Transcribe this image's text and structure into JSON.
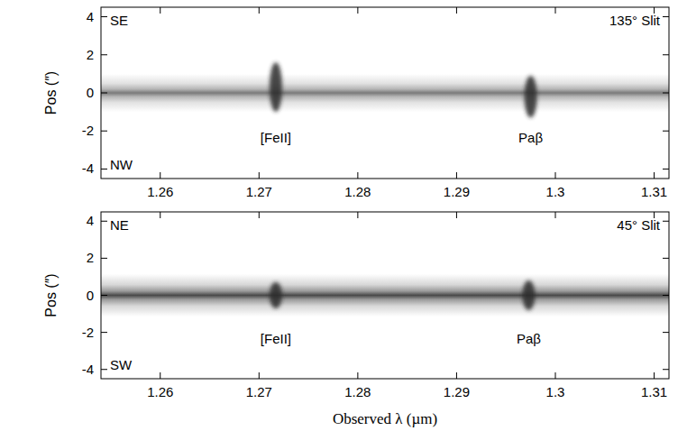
{
  "chart_data": [
    {
      "type": "spectrum2d",
      "ylabel": "Pos (″)",
      "corner_labels": {
        "top_left": "SE",
        "bottom_left": "NW",
        "top_right": "135° Slit"
      },
      "xlim": [
        1.254,
        1.3115
      ],
      "xticks": [
        1.26,
        1.27,
        1.28,
        1.29,
        1.3,
        1.31
      ],
      "ylim": [
        -4.5,
        4.5
      ],
      "yticks": [
        -4,
        -2,
        0,
        2,
        4
      ],
      "tick_labels": true,
      "continuum": {
        "y": 0,
        "width": 1.0,
        "color": "#7a7a7a"
      },
      "lines": [
        {
          "name": "[FeII]",
          "x": 1.2717,
          "ymin": -1.0,
          "ymax": 1.6
        },
        {
          "name": "Paβ",
          "x": 1.2975,
          "ymin": -1.3,
          "ymax": 0.9
        }
      ]
    },
    {
      "type": "spectrum2d",
      "ylabel": "Pos (″)",
      "xlabel": "Observed λ (µm)",
      "corner_labels": {
        "top_left": "NE",
        "bottom_left": "SW",
        "top_right": "45° Slit"
      },
      "xlim": [
        1.254,
        1.3115
      ],
      "xticks": [
        1.26,
        1.27,
        1.28,
        1.29,
        1.3,
        1.31
      ],
      "ylim": [
        -4.5,
        4.5
      ],
      "yticks": [
        -4,
        -2,
        0,
        2,
        4
      ],
      "tick_labels": true,
      "continuum": {
        "y": 0,
        "width": 1.15,
        "color": "#4a4a4a"
      },
      "lines": [
        {
          "name": "[FeII]",
          "x": 1.2717,
          "ymin": -0.7,
          "ymax": 0.7
        },
        {
          "name": "Paβ",
          "x": 1.2973,
          "ymin": -0.8,
          "ymax": 0.8
        }
      ]
    }
  ]
}
